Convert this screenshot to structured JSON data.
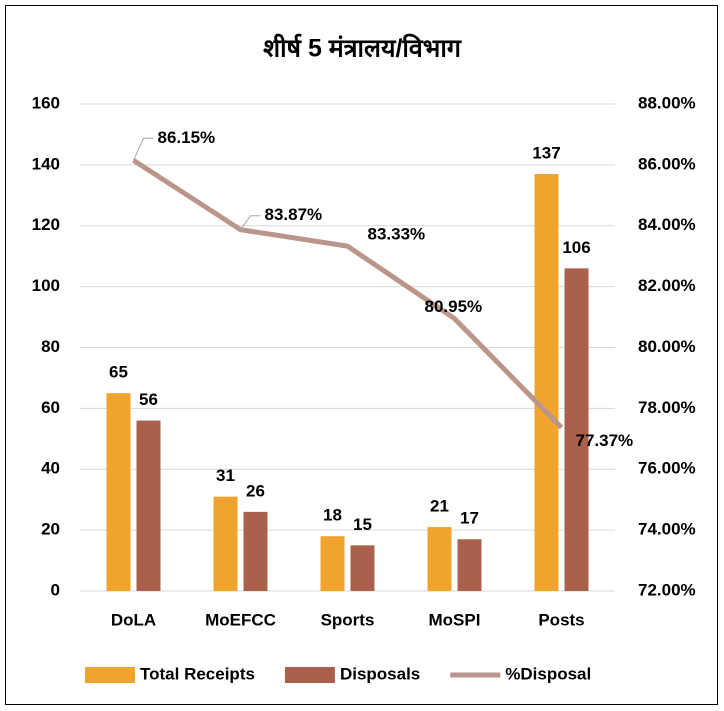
{
  "chart_data": {
    "type": "bar",
    "title": "शीर्ष 5 मंत्रालय/विभाग",
    "categories": [
      "DoLA",
      "MoEFCC",
      "Sports",
      "MoSPI",
      "Posts"
    ],
    "series": [
      {
        "name": "Total Receipts",
        "color": "#f0a32f",
        "values": [
          65,
          31,
          18,
          21,
          137
        ]
      },
      {
        "name": "Disposals",
        "color": "#a9614b",
        "values": [
          56,
          26,
          15,
          17,
          106
        ]
      },
      {
        "name": "%Disposal",
        "type": "line",
        "axis": "y2",
        "color": "#b9958a",
        "values": [
          86.15,
          83.87,
          83.33,
          80.95,
          77.37
        ],
        "value_labels": [
          "86.15%",
          "83.87%",
          "83.33%",
          "80.95%",
          "77.37%"
        ]
      }
    ],
    "ylim": [
      0,
      160
    ],
    "yticks": [
      0,
      20,
      40,
      60,
      80,
      100,
      120,
      140,
      160
    ],
    "y2lim": [
      72,
      88
    ],
    "y2ticks": [
      {
        "value": 72,
        "label": "72.00%"
      },
      {
        "value": 74,
        "label": "74.00%"
      },
      {
        "value": 76,
        "label": "76.00%"
      },
      {
        "value": 78,
        "label": "78.00%"
      },
      {
        "value": 80,
        "label": "80.00%"
      },
      {
        "value": 82,
        "label": "82.00%"
      },
      {
        "value": 84,
        "label": "84.00%"
      },
      {
        "value": 86,
        "label": "86.00%"
      },
      {
        "value": 88,
        "label": "88.00%"
      }
    ],
    "grid": true,
    "legend": "bottom"
  }
}
